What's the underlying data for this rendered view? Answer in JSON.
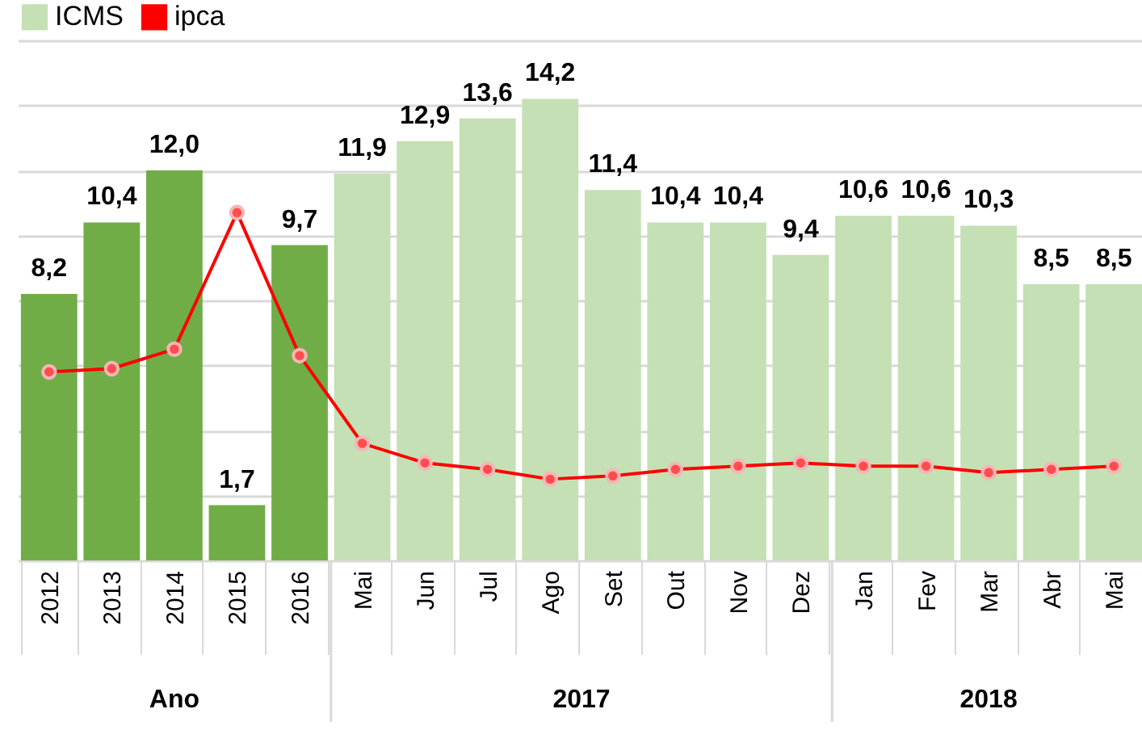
{
  "chart_data": {
    "type": "bar",
    "categories": [
      "2012",
      "2013",
      "2014",
      "2015",
      "2016",
      "Mai",
      "Jun",
      "Jul",
      "Ago",
      "Set",
      "Out",
      "Nov",
      "Dez",
      "Jan",
      "Fev",
      "Mar",
      "Abr",
      "Mai"
    ],
    "series": [
      {
        "name": "ICMS",
        "type": "bar",
        "color": "#c5e0b4",
        "colors": [
          "#70ad47",
          "#70ad47",
          "#70ad47",
          "#70ad47",
          "#70ad47",
          "#c5e0b4",
          "#c5e0b4",
          "#c5e0b4",
          "#c5e0b4",
          "#c5e0b4",
          "#c5e0b4",
          "#c5e0b4",
          "#c5e0b4",
          "#c5e0b4",
          "#c5e0b4",
          "#c5e0b4",
          "#c5e0b4",
          "#c5e0b4"
        ],
        "values": [
          8.2,
          10.4,
          12.0,
          1.7,
          9.7,
          11.9,
          12.9,
          13.6,
          14.2,
          11.4,
          10.4,
          10.4,
          9.4,
          10.6,
          10.6,
          10.3,
          8.5,
          8.5
        ],
        "value_labels": [
          "8,2",
          "10,4",
          "12,0",
          "1,7",
          "9,7",
          "11,9",
          "12,9",
          "13,6",
          "14,2",
          "11,4",
          "10,4",
          "10,4",
          "9,4",
          "10,6",
          "10,6",
          "10,3",
          "8,5",
          "8,5"
        ]
      },
      {
        "name": "ipca",
        "type": "line",
        "color": "#ff0000",
        "values": [
          5.8,
          5.9,
          6.5,
          10.7,
          6.3,
          3.6,
          3.0,
          2.8,
          2.5,
          2.6,
          2.8,
          2.9,
          3.0,
          2.9,
          2.9,
          2.7,
          2.8,
          2.9
        ]
      }
    ],
    "annotations": [
      "Ano",
      "2017",
      "2018"
    ],
    "ylim": [
      0,
      16
    ],
    "yticks": [
      {
        "value": 0,
        "label": null
      },
      {
        "value": 2,
        "label": null
      },
      {
        "value": 4,
        "label": null
      },
      {
        "value": 6,
        "label": null
      },
      {
        "value": 8,
        "label": null
      },
      {
        "value": 10,
        "label": null
      },
      {
        "value": 12,
        "label": null
      },
      {
        "value": 14,
        "label": null
      },
      {
        "value": 16,
        "label": null
      }
    ],
    "tick_labels": "x",
    "grid": "y",
    "legend": "top left",
    "marker": "circle",
    "line_style": "solid"
  }
}
